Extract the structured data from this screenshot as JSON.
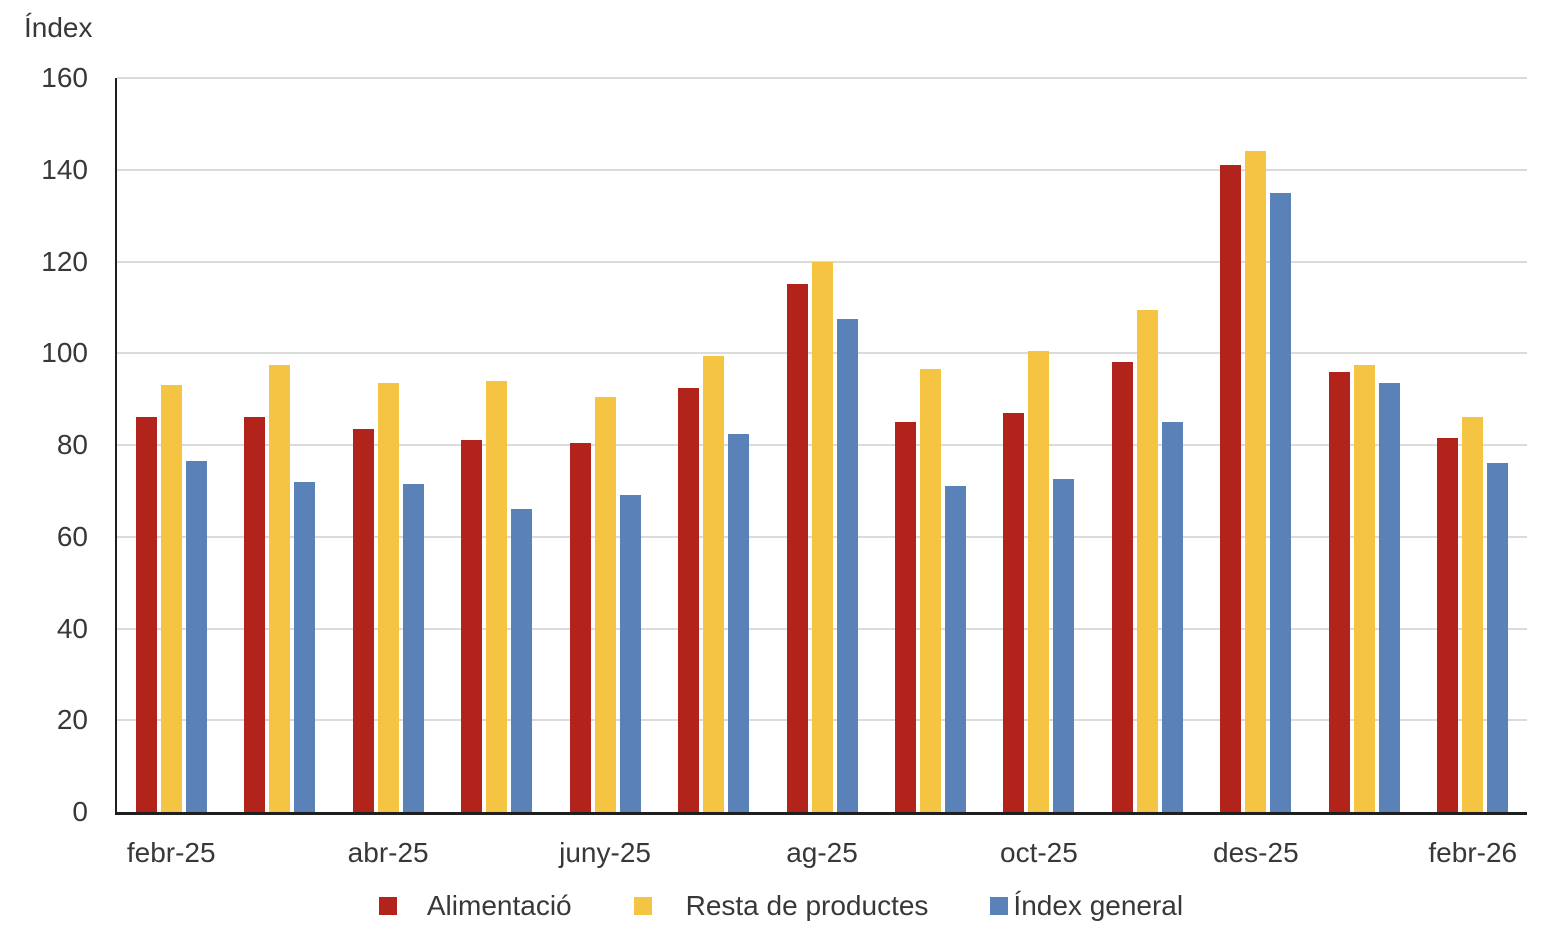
{
  "colors": {
    "gridline": "#DBDBDB",
    "axis": "#1F1F1F",
    "text": "#383838",
    "alimentacio": "#B2241B",
    "resta_de_productes": "#F6C443",
    "index_general": "#5B81B9"
  },
  "chart_data": {
    "type": "bar",
    "title": "",
    "ylabel": "Índex",
    "xlabel": "",
    "ylim": [
      0,
      160
    ],
    "y_ticks": [
      0,
      20,
      40,
      60,
      80,
      100,
      120,
      140,
      160
    ],
    "grid": true,
    "legend_position": "bottom",
    "categories": [
      "febr-25",
      "",
      "abr-25",
      "",
      "juny-25",
      "",
      "ag-25",
      "",
      "oct-25",
      "",
      "des-25",
      "",
      "febr-26"
    ],
    "x_tick_labels": [
      "febr-25",
      "abr-25",
      "juny-25",
      "ag-25",
      "oct-25",
      "des-25",
      "febr-26"
    ],
    "x_tick_group_indices": [
      0,
      2,
      4,
      6,
      8,
      10,
      12
    ],
    "series": [
      {
        "name": "Alimentació",
        "color": "#B2241B",
        "values": [
          86,
          86,
          83.5,
          81,
          80.5,
          92.5,
          115,
          85,
          87,
          98,
          141,
          96,
          81.5
        ]
      },
      {
        "name": "Resta de productes",
        "color": "#F6C443",
        "values": [
          93,
          97.5,
          93.5,
          94,
          90.5,
          99.5,
          120,
          96.5,
          100.5,
          109.5,
          144,
          97.5,
          86
        ]
      },
      {
        "name": "Índex general",
        "color": "#5B81B9",
        "values": [
          76.5,
          72,
          71.5,
          66,
          69,
          82.5,
          107.5,
          71,
          72.5,
          85,
          135,
          93.5,
          76
        ]
      }
    ]
  }
}
